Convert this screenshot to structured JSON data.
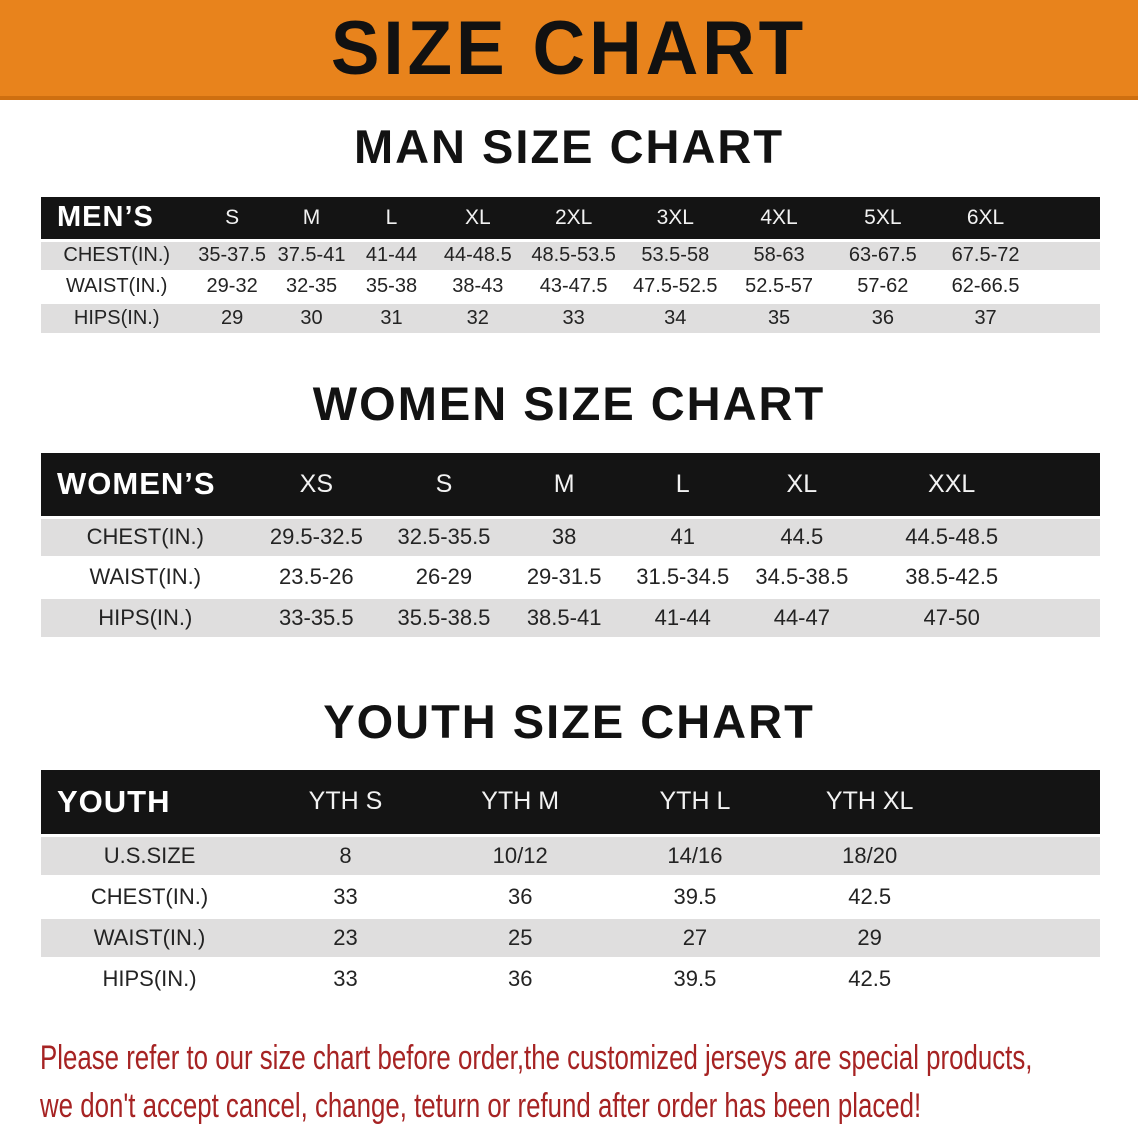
{
  "banner": {
    "title": "SIZE CHART",
    "bg_color": "#E8831C",
    "text_color": "#111111"
  },
  "sections": [
    {
      "heading": "MAN SIZE CHART",
      "corner_label": "MEN’S",
      "columns": [
        "S",
        "M",
        "L",
        "XL",
        "2XL",
        "3XL",
        "4XL",
        "5XL",
        "6XL"
      ],
      "rows": [
        {
          "label": "CHEST(IN.)",
          "values": [
            "35-37.5",
            "37.5-41",
            "41-44",
            "44-48.5",
            "48.5-53.5",
            "53.5-58",
            "58-63",
            "63-67.5",
            "67.5-72"
          ]
        },
        {
          "label": "WAIST(IN.)",
          "values": [
            "29-32",
            "32-35",
            "35-38",
            "38-43",
            "43-47.5",
            "47.5-52.5",
            "52.5-57",
            "57-62",
            "62-66.5"
          ]
        },
        {
          "label": "HIPS(IN.)",
          "values": [
            "29",
            "30",
            "31",
            "32",
            "33",
            "34",
            "35",
            "36",
            "37"
          ]
        }
      ]
    },
    {
      "heading": "WOMEN SIZE CHART",
      "corner_label": "WOMEN’S",
      "columns": [
        "XS",
        "S",
        "M",
        "L",
        "XL",
        "XXL"
      ],
      "rows": [
        {
          "label": "CHEST(IN.)",
          "values": [
            "29.5-32.5",
            "32.5-35.5",
            "38",
            "41",
            "44.5",
            "44.5-48.5"
          ]
        },
        {
          "label": "WAIST(IN.)",
          "values": [
            "23.5-26",
            "26-29",
            "29-31.5",
            "31.5-34.5",
            "34.5-38.5",
            "38.5-42.5"
          ]
        },
        {
          "label": "HIPS(IN.)",
          "values": [
            "33-35.5",
            "35.5-38.5",
            "38.5-41",
            "41-44",
            "44-47",
            "47-50"
          ]
        }
      ]
    },
    {
      "heading": "YOUTH SIZE CHART",
      "corner_label": "YOUTH",
      "columns": [
        "YTH S",
        "YTH M",
        "YTH L",
        "YTH XL"
      ],
      "rows": [
        {
          "label": "U.S.SIZE",
          "values": [
            "8",
            "10/12",
            "14/16",
            "18/20"
          ]
        },
        {
          "label": "CHEST(IN.)",
          "values": [
            "33",
            "36",
            "39.5",
            "42.5"
          ]
        },
        {
          "label": "WAIST(IN.)",
          "values": [
            "23",
            "25",
            "27",
            "29"
          ]
        },
        {
          "label": "HIPS(IN.)",
          "values": [
            "33",
            "36",
            "39.5",
            "42.5"
          ]
        }
      ]
    }
  ],
  "disclaimer": {
    "lines": [
      "Please refer to our size chart before order,the customized jerseys are special products,",
      "we don't accept cancel, change, teturn or refund after order has been placed!"
    ],
    "color": "#A62323"
  },
  "colors": {
    "header_row_bg": "#141414",
    "header_row_text": "#F2F2F2",
    "stripe_gray": "#DFDEDE",
    "stripe_white": "#FFFFFF"
  }
}
